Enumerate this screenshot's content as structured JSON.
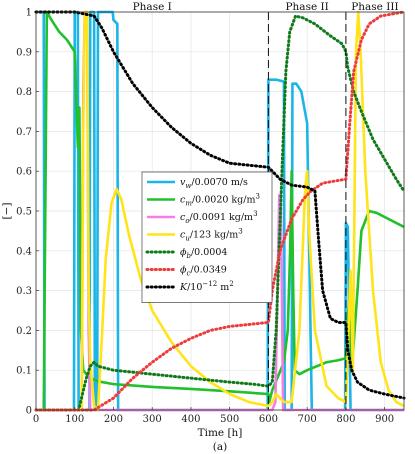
{
  "chart_data": {
    "type": "line",
    "xlabel": "Time [h]",
    "ylabel": "[−]",
    "caption": "(a)",
    "xlim": [
      0,
      950
    ],
    "ylim": [
      0,
      1
    ],
    "xticks": [
      "0",
      "100",
      "200",
      "300",
      "400",
      "500",
      "600",
      "700",
      "800",
      "900"
    ],
    "yticks": [
      "0",
      "0.1",
      "0.2",
      "0.3",
      "0.4",
      "0.5",
      "0.6",
      "0.7",
      "0.8",
      "0.9",
      "1"
    ],
    "grid": true,
    "legend_position": "center-left",
    "phase_labels": [
      "Phase I",
      "Phase II",
      "Phase III"
    ],
    "phase_label_x": [
      300,
      700,
      875
    ],
    "phase_boundaries": [
      600,
      800
    ],
    "series": [
      {
        "name": "v_w/0.0070 m/s",
        "label_main": "v",
        "label_sub": "w",
        "label_rest": "/0.0070 m/s",
        "color": "#1bb5e8",
        "dash": "solid",
        "points": [
          [
            0,
            1
          ],
          [
            20,
            1
          ],
          [
            22,
            0
          ],
          [
            98,
            0
          ],
          [
            100,
            1
          ],
          [
            108,
            1
          ],
          [
            110,
            0
          ],
          [
            138,
            0
          ],
          [
            140,
            1
          ],
          [
            150,
            1
          ],
          [
            152,
            0
          ],
          [
            158,
            0
          ],
          [
            160,
            1
          ],
          [
            198,
            1
          ],
          [
            200,
            0.98
          ],
          [
            210,
            0.97
          ],
          [
            212,
            0
          ],
          [
            598,
            0
          ],
          [
            600,
            0.83
          ],
          [
            620,
            0.83
          ],
          [
            640,
            0.825
          ],
          [
            642,
            0
          ],
          [
            660,
            0
          ],
          [
            662,
            0.82
          ],
          [
            672,
            0.82
          ],
          [
            685,
            0.8
          ],
          [
            700,
            0.72
          ],
          [
            712,
            0
          ],
          [
            798,
            0
          ],
          [
            800,
            0.47
          ],
          [
            805,
            0.46
          ],
          [
            812,
            0
          ],
          [
            950,
            0
          ]
        ]
      },
      {
        "name": "c_m/0.0020 kg/m^3",
        "label_main": "c",
        "label_sub": "m",
        "label_rest": "/0.0020 kg/m",
        "label_sup": "3",
        "color": "#22c02a",
        "dash": "solid",
        "points": [
          [
            0,
            0
          ],
          [
            20,
            0
          ],
          [
            28,
            1
          ],
          [
            40,
            0.98
          ],
          [
            60,
            0.95
          ],
          [
            80,
            0.93
          ],
          [
            100,
            0.9
          ],
          [
            108,
            0.66
          ],
          [
            112,
            0.76
          ],
          [
            116,
            0.2
          ],
          [
            122,
            0.1
          ],
          [
            130,
            0.09
          ],
          [
            140,
            0.08
          ],
          [
            160,
            0.072
          ],
          [
            200,
            0.065
          ],
          [
            300,
            0.058
          ],
          [
            400,
            0.053
          ],
          [
            500,
            0.047
          ],
          [
            600,
            0.04
          ],
          [
            602,
            0.02
          ],
          [
            610,
            0.05
          ],
          [
            640,
            0.12
          ],
          [
            650,
            0.2
          ],
          [
            656,
            0.4
          ],
          [
            660,
            0.6
          ],
          [
            664,
            0.3
          ],
          [
            668,
            0.1
          ],
          [
            680,
            0.09
          ],
          [
            700,
            0.1
          ],
          [
            750,
            0.12
          ],
          [
            780,
            0.125
          ],
          [
            800,
            0.13
          ],
          [
            803,
            0.2
          ],
          [
            810,
            0.3
          ],
          [
            815,
            0.1
          ],
          [
            830,
            0.3
          ],
          [
            840,
            0.45
          ],
          [
            860,
            0.5
          ],
          [
            880,
            0.495
          ],
          [
            900,
            0.485
          ],
          [
            950,
            0.46
          ]
        ]
      },
      {
        "name": "c_o/0.0091 kg/m^3",
        "label_main": "c",
        "label_sub": "o",
        "label_rest": "/0.0091 kg/m",
        "label_sup": "3",
        "color": "#f47fe3",
        "dash": "solid",
        "points": [
          [
            0,
            0
          ],
          [
            118,
            0
          ],
          [
            122,
            0.8
          ],
          [
            126,
            1
          ],
          [
            132,
            1
          ],
          [
            136,
            0.2
          ],
          [
            140,
            0
          ],
          [
            600,
            0
          ],
          [
            610,
            0
          ],
          [
            618,
            0.02
          ],
          [
            628,
            0.54
          ],
          [
            632,
            0.54
          ],
          [
            638,
            0
          ],
          [
            800,
            0
          ],
          [
            950,
            0
          ]
        ]
      },
      {
        "name": "c_u/123 kg/m^3",
        "label_main": "c",
        "label_sub": "u",
        "label_rest": "/123 kg/m",
        "label_sup": "3",
        "color": "#ffe419",
        "dash": "solid",
        "points": [
          [
            0,
            0
          ],
          [
            118,
            0
          ],
          [
            122,
            0.7
          ],
          [
            126,
            1
          ],
          [
            132,
            1
          ],
          [
            136,
            0.3
          ],
          [
            140,
            0.12
          ],
          [
            150,
            0.01
          ],
          [
            160,
            0
          ],
          [
            170,
            0.18
          ],
          [
            180,
            0.38
          ],
          [
            195,
            0.52
          ],
          [
            208,
            0.555
          ],
          [
            220,
            0.53
          ],
          [
            240,
            0.44
          ],
          [
            270,
            0.33
          ],
          [
            300,
            0.25
          ],
          [
            350,
            0.17
          ],
          [
            400,
            0.11
          ],
          [
            450,
            0.07
          ],
          [
            500,
            0.04
          ],
          [
            550,
            0.02
          ],
          [
            600,
            0.01
          ],
          [
            610,
            0.02
          ],
          [
            620,
            0.04
          ],
          [
            640,
            0.02
          ],
          [
            660,
            0.02
          ],
          [
            680,
            0.2
          ],
          [
            695,
            0.56
          ],
          [
            700,
            0.6
          ],
          [
            705,
            0.45
          ],
          [
            720,
            0.2
          ],
          [
            750,
            0.06
          ],
          [
            780,
            0.03
          ],
          [
            800,
            0.02
          ],
          [
            805,
            0.15
          ],
          [
            812,
            0.35
          ],
          [
            818,
            0.1
          ],
          [
            820,
            0.3
          ],
          [
            826,
            0.9
          ],
          [
            832,
            1
          ],
          [
            838,
            0.9
          ],
          [
            850,
            0.6
          ],
          [
            870,
            0.3
          ],
          [
            890,
            0.12
          ],
          [
            910,
            0.05
          ],
          [
            930,
            0.02
          ],
          [
            950,
            0.01
          ]
        ]
      },
      {
        "name": "ϕ_b/0.0004",
        "label_main": "ϕ",
        "label_sub": "b",
        "label_rest": "/0.0004",
        "color": "#0f7a18",
        "dash": "dotted",
        "points": [
          [
            0,
            0
          ],
          [
            110,
            0
          ],
          [
            115,
            0.02
          ],
          [
            120,
            0.04
          ],
          [
            130,
            0.08
          ],
          [
            140,
            0.11
          ],
          [
            150,
            0.12
          ],
          [
            160,
            0.11
          ],
          [
            200,
            0.1
          ],
          [
            300,
            0.09
          ],
          [
            400,
            0.08
          ],
          [
            500,
            0.07
          ],
          [
            560,
            0.065
          ],
          [
            600,
            0.06
          ],
          [
            610,
            0.07
          ],
          [
            620,
            0.2
          ],
          [
            635,
            0.6
          ],
          [
            645,
            0.85
          ],
          [
            655,
            0.95
          ],
          [
            670,
            0.99
          ],
          [
            690,
            0.985
          ],
          [
            720,
            0.97
          ],
          [
            760,
            0.94
          ],
          [
            790,
            0.92
          ],
          [
            800,
            0.9
          ],
          [
            805,
            0.86
          ],
          [
            820,
            0.8
          ],
          [
            840,
            0.75
          ],
          [
            870,
            0.68
          ],
          [
            900,
            0.63
          ],
          [
            930,
            0.58
          ],
          [
            950,
            0.55
          ]
        ]
      },
      {
        "name": "ϕ_c/0.0349",
        "label_main": "ϕ",
        "label_sub": "c",
        "label_rest": "/0.0349",
        "color": "#ee3b3b",
        "dash": "dotted",
        "points": [
          [
            0,
            0
          ],
          [
            150,
            0
          ],
          [
            200,
            0.03
          ],
          [
            250,
            0.08
          ],
          [
            300,
            0.12
          ],
          [
            350,
            0.155
          ],
          [
            400,
            0.18
          ],
          [
            450,
            0.2
          ],
          [
            500,
            0.21
          ],
          [
            550,
            0.215
          ],
          [
            600,
            0.22
          ],
          [
            610,
            0.3
          ],
          [
            630,
            0.4
          ],
          [
            660,
            0.48
          ],
          [
            690,
            0.53
          ],
          [
            710,
            0.55
          ],
          [
            740,
            0.57
          ],
          [
            770,
            0.575
          ],
          [
            800,
            0.58
          ],
          [
            810,
            0.72
          ],
          [
            820,
            0.85
          ],
          [
            840,
            0.93
          ],
          [
            860,
            0.97
          ],
          [
            890,
            0.99
          ],
          [
            950,
            1
          ]
        ]
      },
      {
        "name": "K/10^-12 m^2",
        "label_main": "K",
        "label_sub": "",
        "label_rest": "/10",
        "label_sup": "−12",
        "label_tail": " m",
        "label_sup2": "2",
        "color": "#000000",
        "dash": "dotted",
        "points": [
          [
            0,
            1
          ],
          [
            100,
            1
          ],
          [
            150,
            0.99
          ],
          [
            170,
            0.96
          ],
          [
            200,
            0.9
          ],
          [
            250,
            0.82
          ],
          [
            300,
            0.76
          ],
          [
            350,
            0.71
          ],
          [
            400,
            0.67
          ],
          [
            450,
            0.64
          ],
          [
            500,
            0.62
          ],
          [
            550,
            0.615
          ],
          [
            600,
            0.61
          ],
          [
            610,
            0.6
          ],
          [
            630,
            0.58
          ],
          [
            660,
            0.565
          ],
          [
            700,
            0.56
          ],
          [
            720,
            0.55
          ],
          [
            730,
            0.42
          ],
          [
            740,
            0.3
          ],
          [
            760,
            0.23
          ],
          [
            780,
            0.22
          ],
          [
            800,
            0.22
          ],
          [
            805,
            0.15
          ],
          [
            815,
            0.1
          ],
          [
            830,
            0.07
          ],
          [
            860,
            0.05
          ],
          [
            900,
            0.04
          ],
          [
            950,
            0.03
          ]
        ]
      }
    ]
  }
}
